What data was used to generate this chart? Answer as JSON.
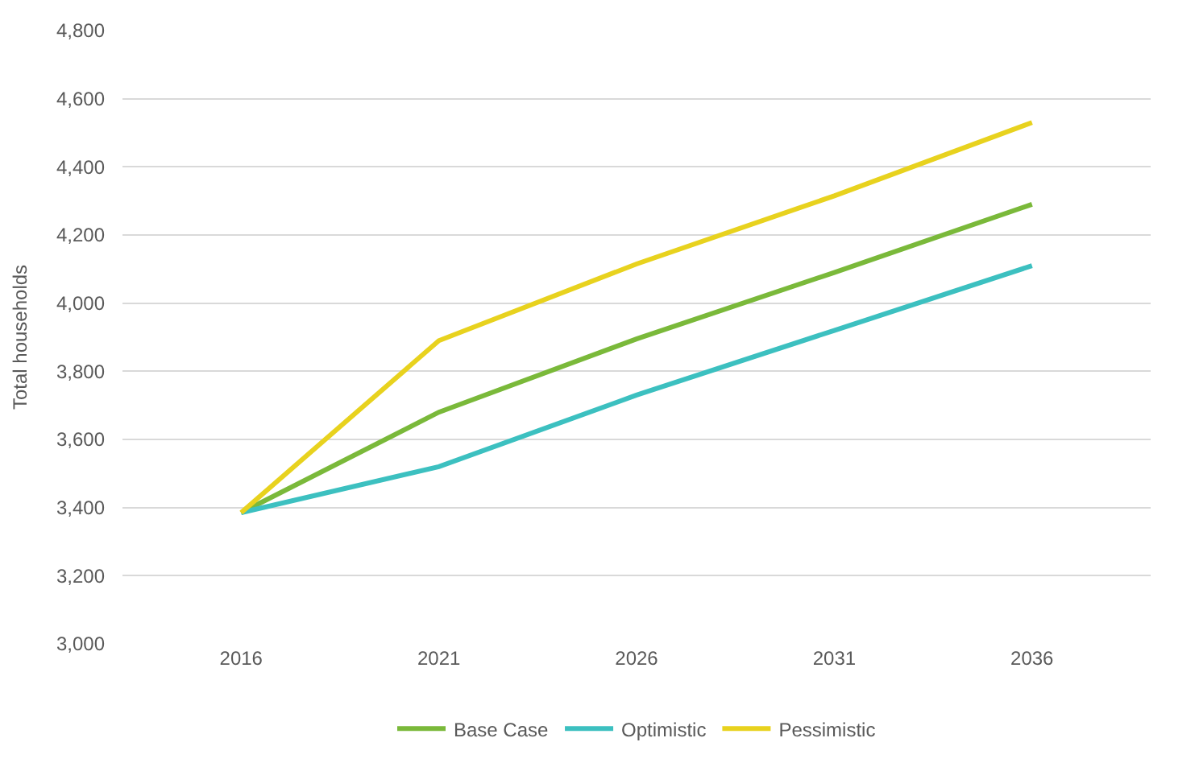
{
  "chart_data": {
    "type": "line",
    "ylabel": "Total households",
    "categories": [
      "2016",
      "2021",
      "2026",
      "2031",
      "2036"
    ],
    "series": [
      {
        "name": "Base Case",
        "color": "#7ab93a",
        "values": [
          3385,
          3680,
          3895,
          4090,
          4290
        ]
      },
      {
        "name": "Optimistic",
        "color": "#3cc0c0",
        "values": [
          3385,
          3520,
          3730,
          3920,
          4110
        ]
      },
      {
        "name": "Pessimistic",
        "color": "#e8d21e",
        "values": [
          3385,
          3890,
          4115,
          4315,
          4530
        ]
      }
    ],
    "ylim": [
      3000,
      4800
    ],
    "yticks": [
      {
        "value": 3000,
        "label": "3,000"
      },
      {
        "value": 3200,
        "label": "3,200"
      },
      {
        "value": 3400,
        "label": "3,400"
      },
      {
        "value": 3600,
        "label": "3,600"
      },
      {
        "value": 3800,
        "label": "3,800"
      },
      {
        "value": 4000,
        "label": "4,000"
      },
      {
        "value": 4200,
        "label": "4,200"
      },
      {
        "value": 4400,
        "label": "4,400"
      },
      {
        "value": 4600,
        "label": "4,600"
      },
      {
        "value": 4800,
        "label": "4,800"
      }
    ],
    "grid": "y",
    "legend": "bottom",
    "marker": "none",
    "line_style": "solid"
  }
}
